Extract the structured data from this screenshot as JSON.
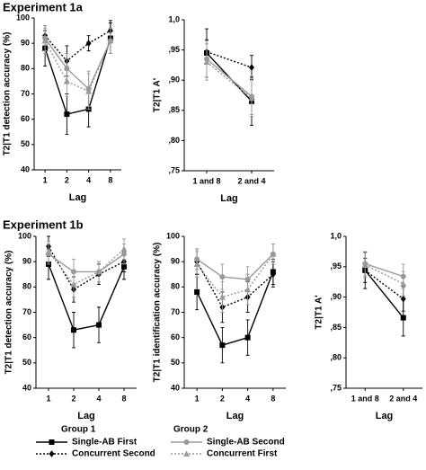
{
  "headings": [
    "Experiment 1a",
    "Experiment 1b"
  ],
  "chart_data": [
    {
      "type": "line",
      "ylabel": "T2|T1 detection accuracy (%)",
      "xlabel": "Lag",
      "categories": [
        "1",
        "2",
        "4",
        "8"
      ],
      "ylim": [
        40,
        100
      ],
      "yticks": [
        40,
        50,
        60,
        70,
        80,
        90,
        100
      ],
      "series": [
        {
          "name": "Single-AB First",
          "group": "Group 1",
          "color": "#000000",
          "line_style": "solid",
          "marker": "square",
          "values": [
            88,
            62,
            64,
            92
          ],
          "errors": [
            7,
            8,
            7,
            6
          ]
        },
        {
          "name": "Concurrent Second",
          "group": "Group 1",
          "color": "#000000",
          "line_style": "dotted",
          "marker": "diamond",
          "values": [
            93,
            83,
            90,
            95
          ],
          "errors": [
            4,
            6,
            3,
            4
          ]
        },
        {
          "name": "Single-AB Second",
          "group": "Group 2",
          "color": "#999999",
          "line_style": "solid",
          "marker": "circle",
          "values": [
            92,
            80,
            72,
            91
          ],
          "errors": [
            5,
            6,
            7,
            5
          ]
        },
        {
          "name": "Concurrent First",
          "group": "Group 2",
          "color": "#999999",
          "line_style": "dotted",
          "marker": "triangle",
          "values": [
            91,
            75,
            71,
            91
          ],
          "errors": [
            5,
            6,
            7,
            5
          ]
        }
      ]
    },
    {
      "type": "line",
      "ylabel": "T2|T1 A'",
      "xlabel": "Lag",
      "categories": [
        "1 and 8",
        "2 and 4"
      ],
      "ylim": [
        0.75,
        1.0
      ],
      "yticks": [
        {
          "value": 0.75,
          "label": ",75"
        },
        {
          "value": 0.8,
          "label": ",80"
        },
        {
          "value": 0.85,
          "label": ",85"
        },
        {
          "value": 0.9,
          "label": ",90"
        },
        {
          "value": 0.95,
          "label": ",95"
        },
        {
          "value": 1.0,
          "label": "1,0"
        }
      ],
      "series": [
        {
          "name": "Single-AB First",
          "color": "#000000",
          "line_style": "solid",
          "marker": "square",
          "values": [
            0.945,
            0.865
          ],
          "errors": [
            0.04,
            0.04
          ]
        },
        {
          "name": "Concurrent Second",
          "color": "#000000",
          "line_style": "dotted",
          "marker": "diamond",
          "values": [
            0.947,
            0.921
          ],
          "errors": [
            0.02,
            0.02
          ]
        },
        {
          "name": "Single-AB Second",
          "color": "#999999",
          "line_style": "solid",
          "marker": "circle",
          "values": [
            0.935,
            0.873
          ],
          "errors": [
            0.03,
            0.03
          ]
        },
        {
          "name": "Concurrent First",
          "color": "#999999",
          "line_style": "dotted",
          "marker": "triangle",
          "values": [
            0.93,
            0.87
          ],
          "errors": [
            0.03,
            0.03
          ]
        }
      ]
    },
    {
      "type": "line",
      "ylabel": "T2|T1 detection accuracy (%)",
      "xlabel": "Lag",
      "categories": [
        "1",
        "2",
        "4",
        "8"
      ],
      "ylim": [
        40,
        100
      ],
      "yticks": [
        40,
        50,
        60,
        70,
        80,
        90,
        100
      ],
      "series": [
        {
          "name": "Single-AB First",
          "color": "#000000",
          "line_style": "solid",
          "marker": "square",
          "values": [
            89,
            63,
            65,
            88
          ],
          "errors": [
            6,
            7,
            7,
            5
          ]
        },
        {
          "name": "Concurrent Second",
          "color": "#000000",
          "line_style": "dotted",
          "marker": "diamond",
          "values": [
            96,
            79,
            85,
            90
          ],
          "errors": [
            4,
            5,
            4,
            4
          ]
        },
        {
          "name": "Single-AB Second",
          "color": "#999999",
          "line_style": "solid",
          "marker": "circle",
          "values": [
            93,
            86,
            86,
            93
          ],
          "errors": [
            4,
            5,
            4,
            4
          ]
        },
        {
          "name": "Concurrent First",
          "color": "#999999",
          "line_style": "dotted",
          "marker": "triangle",
          "values": [
            94,
            81,
            86,
            95
          ],
          "errors": [
            4,
            5,
            4,
            4
          ]
        }
      ]
    },
    {
      "type": "line",
      "ylabel": "T2|T1 identification accuracy (%)",
      "xlabel": "Lag",
      "categories": [
        "1",
        "2",
        "4",
        "8"
      ],
      "ylim": [
        40,
        100
      ],
      "yticks": [
        40,
        50,
        60,
        70,
        80,
        90,
        100
      ],
      "series": [
        {
          "name": "Single-AB First",
          "color": "#000000",
          "line_style": "solid",
          "marker": "square",
          "values": [
            78,
            57,
            60,
            86
          ],
          "errors": [
            7,
            7,
            7,
            5
          ]
        },
        {
          "name": "Concurrent Second",
          "color": "#000000",
          "line_style": "dotted",
          "marker": "diamond",
          "values": [
            90,
            72,
            76,
            85
          ],
          "errors": [
            5,
            6,
            6,
            5
          ]
        },
        {
          "name": "Single-AB Second",
          "color": "#999999",
          "line_style": "solid",
          "marker": "circle",
          "values": [
            91,
            84,
            83,
            93
          ],
          "errors": [
            4,
            5,
            5,
            4
          ]
        },
        {
          "name": "Concurrent First",
          "color": "#999999",
          "line_style": "dotted",
          "marker": "triangle",
          "values": [
            89,
            76,
            79,
            93
          ],
          "errors": [
            5,
            6,
            6,
            4
          ]
        }
      ]
    },
    {
      "type": "line",
      "ylabel": "T2|T1 A'",
      "xlabel": "Lag",
      "categories": [
        "1 and 8",
        "2 and 4"
      ],
      "ylim": [
        0.75,
        1.0
      ],
      "yticks": [
        {
          "value": 0.75,
          "label": ",75"
        },
        {
          "value": 0.8,
          "label": ",80"
        },
        {
          "value": 0.85,
          "label": ",85"
        },
        {
          "value": 0.9,
          "label": ",90"
        },
        {
          "value": 0.95,
          "label": ",95"
        },
        {
          "value": 1.0,
          "label": "1,0"
        }
      ],
      "series": [
        {
          "name": "Single-AB First",
          "color": "#000000",
          "line_style": "solid",
          "marker": "square",
          "values": [
            0.944,
            0.866
          ],
          "errors": [
            0.03,
            0.03
          ]
        },
        {
          "name": "Concurrent Second",
          "color": "#000000",
          "line_style": "dotted",
          "marker": "diamond",
          "values": [
            0.944,
            0.897
          ],
          "errors": [
            0.02,
            0.02
          ]
        },
        {
          "name": "Single-AB Second",
          "color": "#999999",
          "line_style": "solid",
          "marker": "circle",
          "values": [
            0.955,
            0.934
          ],
          "errors": [
            0.02,
            0.02
          ]
        },
        {
          "name": "Concurrent First",
          "color": "#999999",
          "line_style": "dotted",
          "marker": "triangle",
          "values": [
            0.953,
            0.922
          ],
          "errors": [
            0.02,
            0.02
          ]
        }
      ]
    }
  ]
}
